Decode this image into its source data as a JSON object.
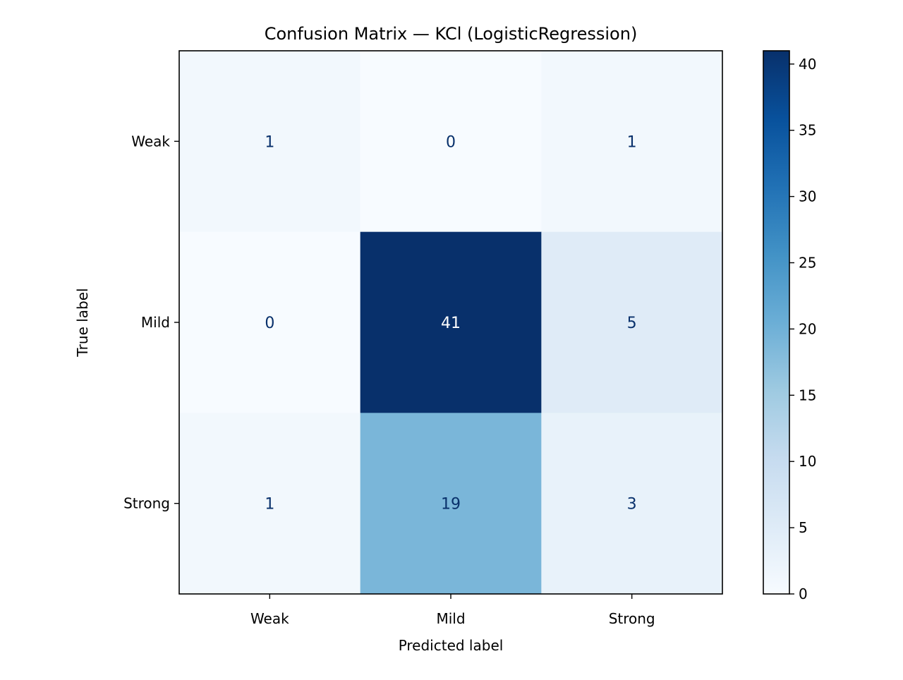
{
  "chart_data": {
    "type": "heatmap",
    "title": "Confusion Matrix — KCl (LogisticRegression)",
    "xlabel": "Predicted label",
    "ylabel": "True label",
    "x_categories": [
      "Weak",
      "Mild",
      "Strong"
    ],
    "y_categories": [
      "Weak",
      "Mild",
      "Strong"
    ],
    "matrix": [
      [
        1,
        0,
        1
      ],
      [
        0,
        41,
        5
      ],
      [
        1,
        19,
        3
      ]
    ],
    "colormap": "Blues",
    "value_range": [
      0,
      41
    ],
    "colorbar": {
      "ticks": [
        0,
        5,
        10,
        15,
        20,
        25,
        30,
        35,
        40
      ]
    },
    "text_colors": {
      "on_light": "#08306b",
      "on_dark": "#ffffff"
    }
  }
}
